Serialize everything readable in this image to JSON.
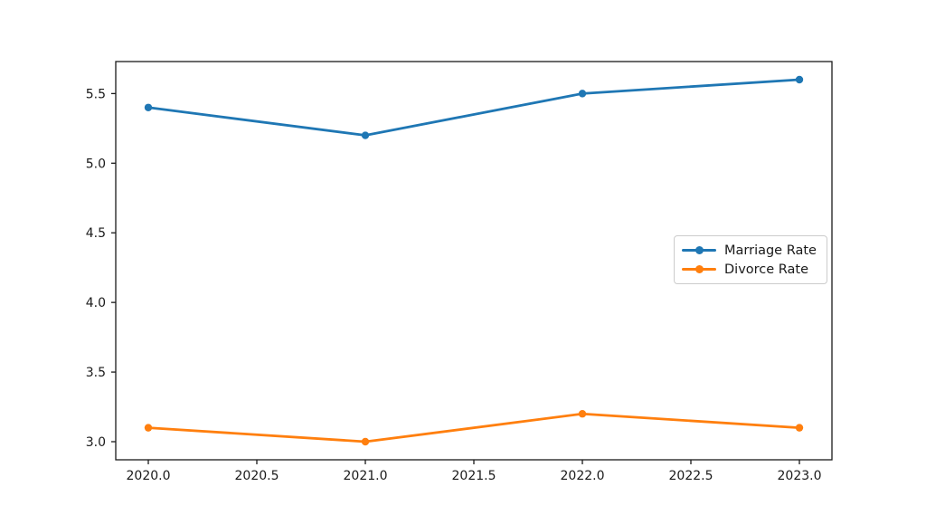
{
  "chart_data": {
    "type": "line",
    "title": "",
    "xlabel": "",
    "ylabel": "",
    "x": [
      2020,
      2021,
      2022,
      2023
    ],
    "series": [
      {
        "name": "Marriage Rate",
        "color": "#1f77b4",
        "values": [
          5.4,
          5.2,
          5.5,
          5.6
        ]
      },
      {
        "name": "Divorce Rate",
        "color": "#ff7f0e",
        "values": [
          3.1,
          3.0,
          3.2,
          3.1
        ]
      }
    ],
    "xlim": [
      2019.85,
      2023.15
    ],
    "ylim": [
      2.87,
      5.73
    ],
    "x_ticks": [
      2020.0,
      2020.5,
      2021.0,
      2021.5,
      2022.0,
      2022.5,
      2023.0
    ],
    "x_tick_labels": [
      "2020.0",
      "2020.5",
      "2021.0",
      "2021.5",
      "2022.0",
      "2022.5",
      "2023.0"
    ],
    "y_ticks": [
      3.0,
      3.5,
      4.0,
      4.5,
      5.0,
      5.5
    ],
    "y_tick_labels": [
      "3.0",
      "3.5",
      "4.0",
      "4.5",
      "5.0",
      "5.5"
    ],
    "grid": false,
    "legend_position": "center right",
    "marker": "circle",
    "axis_color": "#1a1a1a",
    "text_color": "#1a1a1a"
  }
}
